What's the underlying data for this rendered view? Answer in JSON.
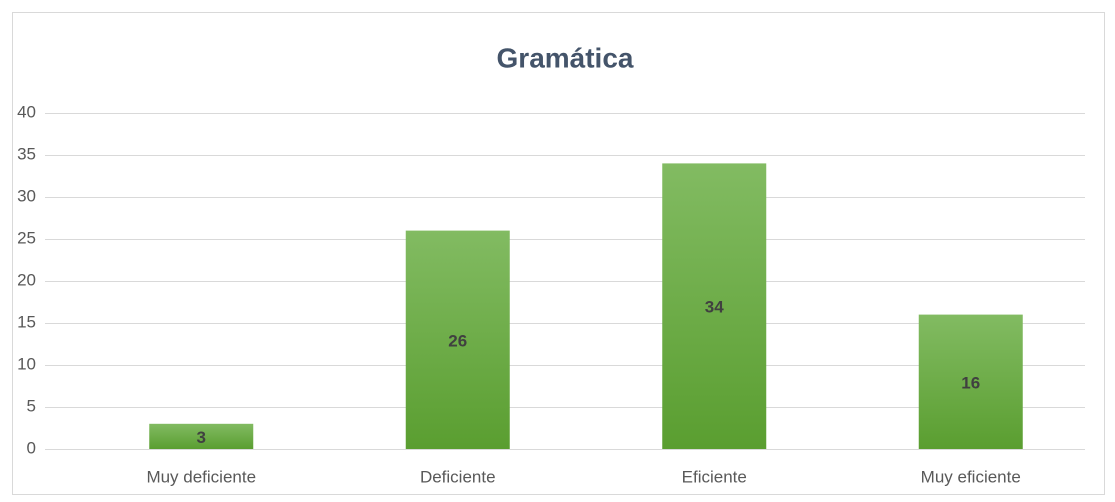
{
  "chart_data": {
    "type": "bar",
    "title": "Gramática",
    "categories": [
      "Muy deficiente",
      "Deficiente",
      "Eficiente",
      "Muy eficiente"
    ],
    "values": [
      3,
      26,
      34,
      16
    ],
    "color": "#6aab3f",
    "ylim": [
      0,
      40
    ],
    "yticks": [
      0,
      5,
      10,
      15,
      20,
      25,
      30,
      35,
      40
    ],
    "grid": true
  }
}
